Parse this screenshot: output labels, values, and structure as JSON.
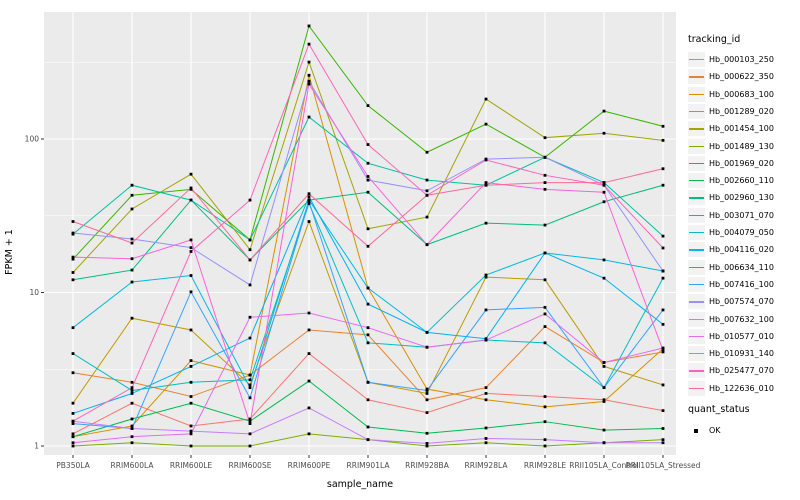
{
  "chart_data": {
    "type": "line",
    "title": "",
    "xlabel": "sample_name",
    "ylabel": "FPKM + 1",
    "x_scale": "categorical",
    "y_scale": "log10",
    "ylim": [
      0.87,
      670
    ],
    "y_ticks": [
      1,
      10,
      100
    ],
    "grid": "on",
    "legend_position": "right",
    "panel_background": "#EBEBEB",
    "gridline_color": "#FFFFFF",
    "point_shape": "filled-square",
    "point_color": "#000000",
    "categories": [
      "PB350LA",
      "RRIM600LA",
      "RRIM600LE",
      "RRIM600SE",
      "RRIM600PE",
      "RRIM901LA",
      "RRIM928BA",
      "RRIM928LA",
      "RRIM928LE",
      "RRII105LA_Control",
      "RRII105LA_Stressed"
    ],
    "series": [
      {
        "name": "Hb_000103_250",
        "color": "#F8766D",
        "values": [
          1.2,
          1.9,
          1.35,
          1.5,
          4.0,
          2.0,
          1.65,
          2.2,
          2.1,
          2.0,
          1.7
        ]
      },
      {
        "name": "Hb_000622_350",
        "color": "#EA8331",
        "values": [
          3.0,
          2.6,
          2.1,
          2.9,
          5.7,
          5.3,
          2.0,
          2.4,
          6.0,
          3.5,
          4.1
        ]
      },
      {
        "name": "Hb_000683_100",
        "color": "#D89000",
        "values": [
          1.15,
          1.35,
          3.6,
          2.9,
          260,
          10.7,
          2.35,
          2.0,
          1.8,
          1.95,
          4.3
        ]
      },
      {
        "name": "Hb_001289_020",
        "color": "#C09B00",
        "values": [
          1.9,
          6.8,
          5.7,
          2.5,
          29,
          2.6,
          2.2,
          12.6,
          12.1,
          3.3,
          2.5
        ]
      },
      {
        "name": "Hb_001454_100",
        "color": "#A3A500",
        "values": [
          13.5,
          35,
          59,
          19,
          317,
          26,
          31,
          182,
          102,
          109,
          98
        ]
      },
      {
        "name": "Hb_001489_130",
        "color": "#7CAE00",
        "values": [
          1.0,
          1.05,
          1.0,
          1.0,
          1.2,
          1.1,
          1.0,
          1.05,
          1.0,
          1.05,
          1.1
        ]
      },
      {
        "name": "Hb_001969_020",
        "color": "#39B600",
        "values": [
          16.5,
          43,
          47,
          22,
          545,
          165,
          82,
          125,
          76,
          152,
          121
        ]
      },
      {
        "name": "Hb_002660_110",
        "color": "#00BB4E",
        "values": [
          1.15,
          1.5,
          1.9,
          1.45,
          2.65,
          1.33,
          1.21,
          1.31,
          1.44,
          1.27,
          1.3
        ]
      },
      {
        "name": "Hb_002960_130",
        "color": "#00BF7D",
        "values": [
          12.1,
          14,
          40,
          16.3,
          40,
          45,
          20.5,
          28.3,
          27.5,
          39,
          50
        ]
      },
      {
        "name": "Hb_003071_070",
        "color": "#00C1A3",
        "values": [
          24,
          50,
          40,
          22,
          139,
          69.5,
          54,
          50,
          76,
          52,
          23.3
        ]
      },
      {
        "name": "Hb_004079_050",
        "color": "#00BFC4",
        "values": [
          4.0,
          2.3,
          2.6,
          2.7,
          38,
          4.7,
          4.4,
          4.9,
          4.7,
          2.4,
          12.4
        ]
      },
      {
        "name": "Hb_004116_020",
        "color": "#00BAE0",
        "values": [
          5.9,
          11.7,
          12.9,
          2.4,
          40,
          10.7,
          5.5,
          13,
          18.1,
          16.3,
          13.8
        ]
      },
      {
        "name": "Hb_006634_110",
        "color": "#00B0F6",
        "values": [
          1.63,
          2.2,
          3.3,
          5.05,
          42,
          8.4,
          5.5,
          5.0,
          18.1,
          12.4,
          6.2
        ]
      },
      {
        "name": "Hb_007416_100",
        "color": "#35A2FF",
        "values": [
          1.4,
          1.3,
          10.1,
          2.06,
          39,
          2.6,
          2.3,
          7.7,
          8.0,
          2.4,
          7.7
        ]
      },
      {
        "name": "Hb_007574_070",
        "color": "#9590FF",
        "values": [
          24.4,
          22.3,
          19.6,
          11.2,
          238,
          54,
          46,
          74,
          76,
          50,
          13.8
        ]
      },
      {
        "name": "Hb_007632_100",
        "color": "#C77CFF",
        "values": [
          1.45,
          1.3,
          1.25,
          1.2,
          1.77,
          1.1,
          1.04,
          1.12,
          1.1,
          1.05,
          1.05
        ]
      },
      {
        "name": "Hb_010577_010",
        "color": "#E76BF3",
        "values": [
          1.05,
          1.15,
          1.2,
          6.9,
          7.35,
          5.9,
          4.4,
          4.9,
          7.25,
          3.5,
          4.35
        ]
      },
      {
        "name": "Hb_010931_140",
        "color": "#FA62DB",
        "values": [
          17,
          16.6,
          22,
          1.4,
          228,
          57,
          20.5,
          52,
          47,
          45,
          4.2
        ]
      },
      {
        "name": "Hb_025477_070",
        "color": "#FF62BC",
        "values": [
          1.45,
          2.4,
          18.5,
          40,
          415,
          92,
          43,
          73,
          58,
          50,
          19.5
        ]
      },
      {
        "name": "Hb_122636_010",
        "color": "#FF6A98",
        "values": [
          29,
          21,
          48,
          16.3,
          44,
          20,
          43,
          50,
          52,
          52,
          64
        ]
      }
    ]
  },
  "legend": {
    "tracking_title": "tracking_id",
    "quant_title": "quant_status",
    "quant_ok_label": "OK"
  }
}
